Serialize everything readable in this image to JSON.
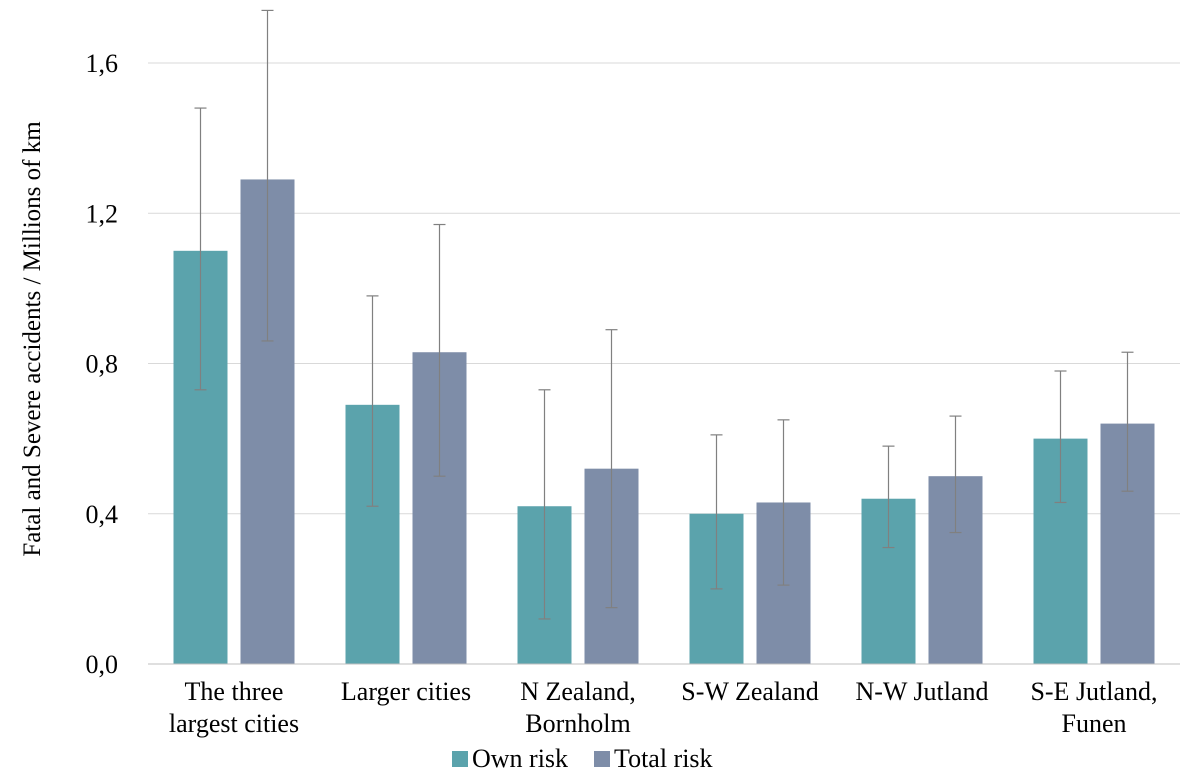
{
  "chart_data": {
    "type": "bar",
    "title": "",
    "xlabel": "",
    "ylabel": "Fatal and Severe accidents / Millions of km",
    "ylim": [
      0,
      1.6
    ],
    "yticks": [
      "0,0",
      "0,4",
      "0,8",
      "1,2",
      "1,6"
    ],
    "ytick_values": [
      0,
      0.4,
      0.8,
      1.2,
      1.6
    ],
    "grid": true,
    "legend_position": "bottom",
    "categories": [
      [
        "The three",
        "largest cities"
      ],
      [
        "Larger cities"
      ],
      [
        "N Zealand,",
        "Bornholm"
      ],
      [
        "S-W Zealand"
      ],
      [
        "N-W Jutland"
      ],
      [
        "S-E Jutland,",
        "Funen"
      ]
    ],
    "series": [
      {
        "name": "Own risk",
        "color": "#5BA3AC",
        "values": [
          1.1,
          0.69,
          0.42,
          0.4,
          0.44,
          0.6
        ],
        "error_low": [
          0.73,
          0.42,
          0.12,
          0.2,
          0.31,
          0.43
        ],
        "error_high": [
          1.48,
          0.98,
          0.73,
          0.61,
          0.58,
          0.78
        ]
      },
      {
        "name": "Total risk",
        "color": "#7E8DA8",
        "values": [
          1.29,
          0.83,
          0.52,
          0.43,
          0.5,
          0.64
        ],
        "error_low": [
          0.86,
          0.5,
          0.15,
          0.21,
          0.35,
          0.46
        ],
        "error_high": [
          1.74,
          1.17,
          0.89,
          0.65,
          0.66,
          0.83
        ]
      }
    ]
  }
}
